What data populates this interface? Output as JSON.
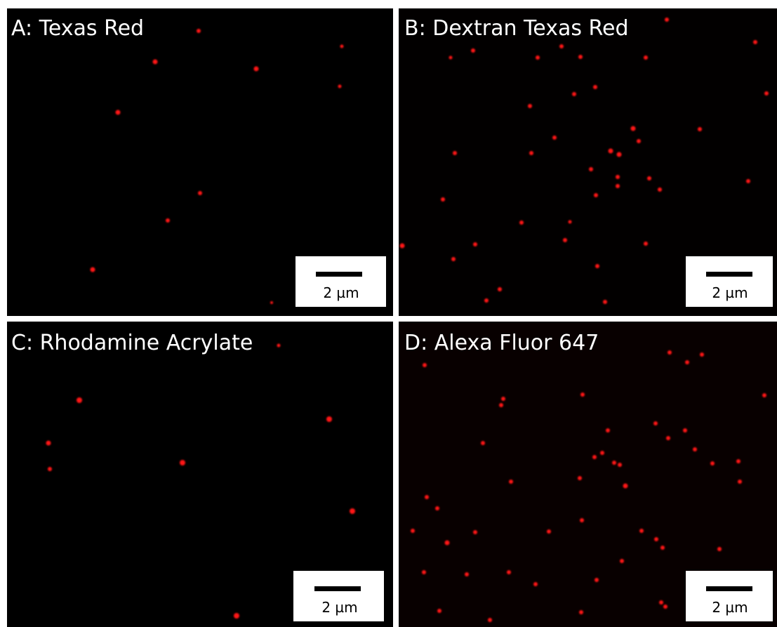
{
  "panels": [
    {
      "label": "A: Texas Red",
      "scale_label": "2 µm"
    },
    {
      "label": "B: Dextran Texas Red",
      "scale_label": "2 µm"
    },
    {
      "label": "C: Rhodamine Acrylate",
      "scale_label": "2 µm"
    },
    {
      "label": "D: Alexa Fluor 647",
      "scale_label": "2 µm"
    }
  ]
}
